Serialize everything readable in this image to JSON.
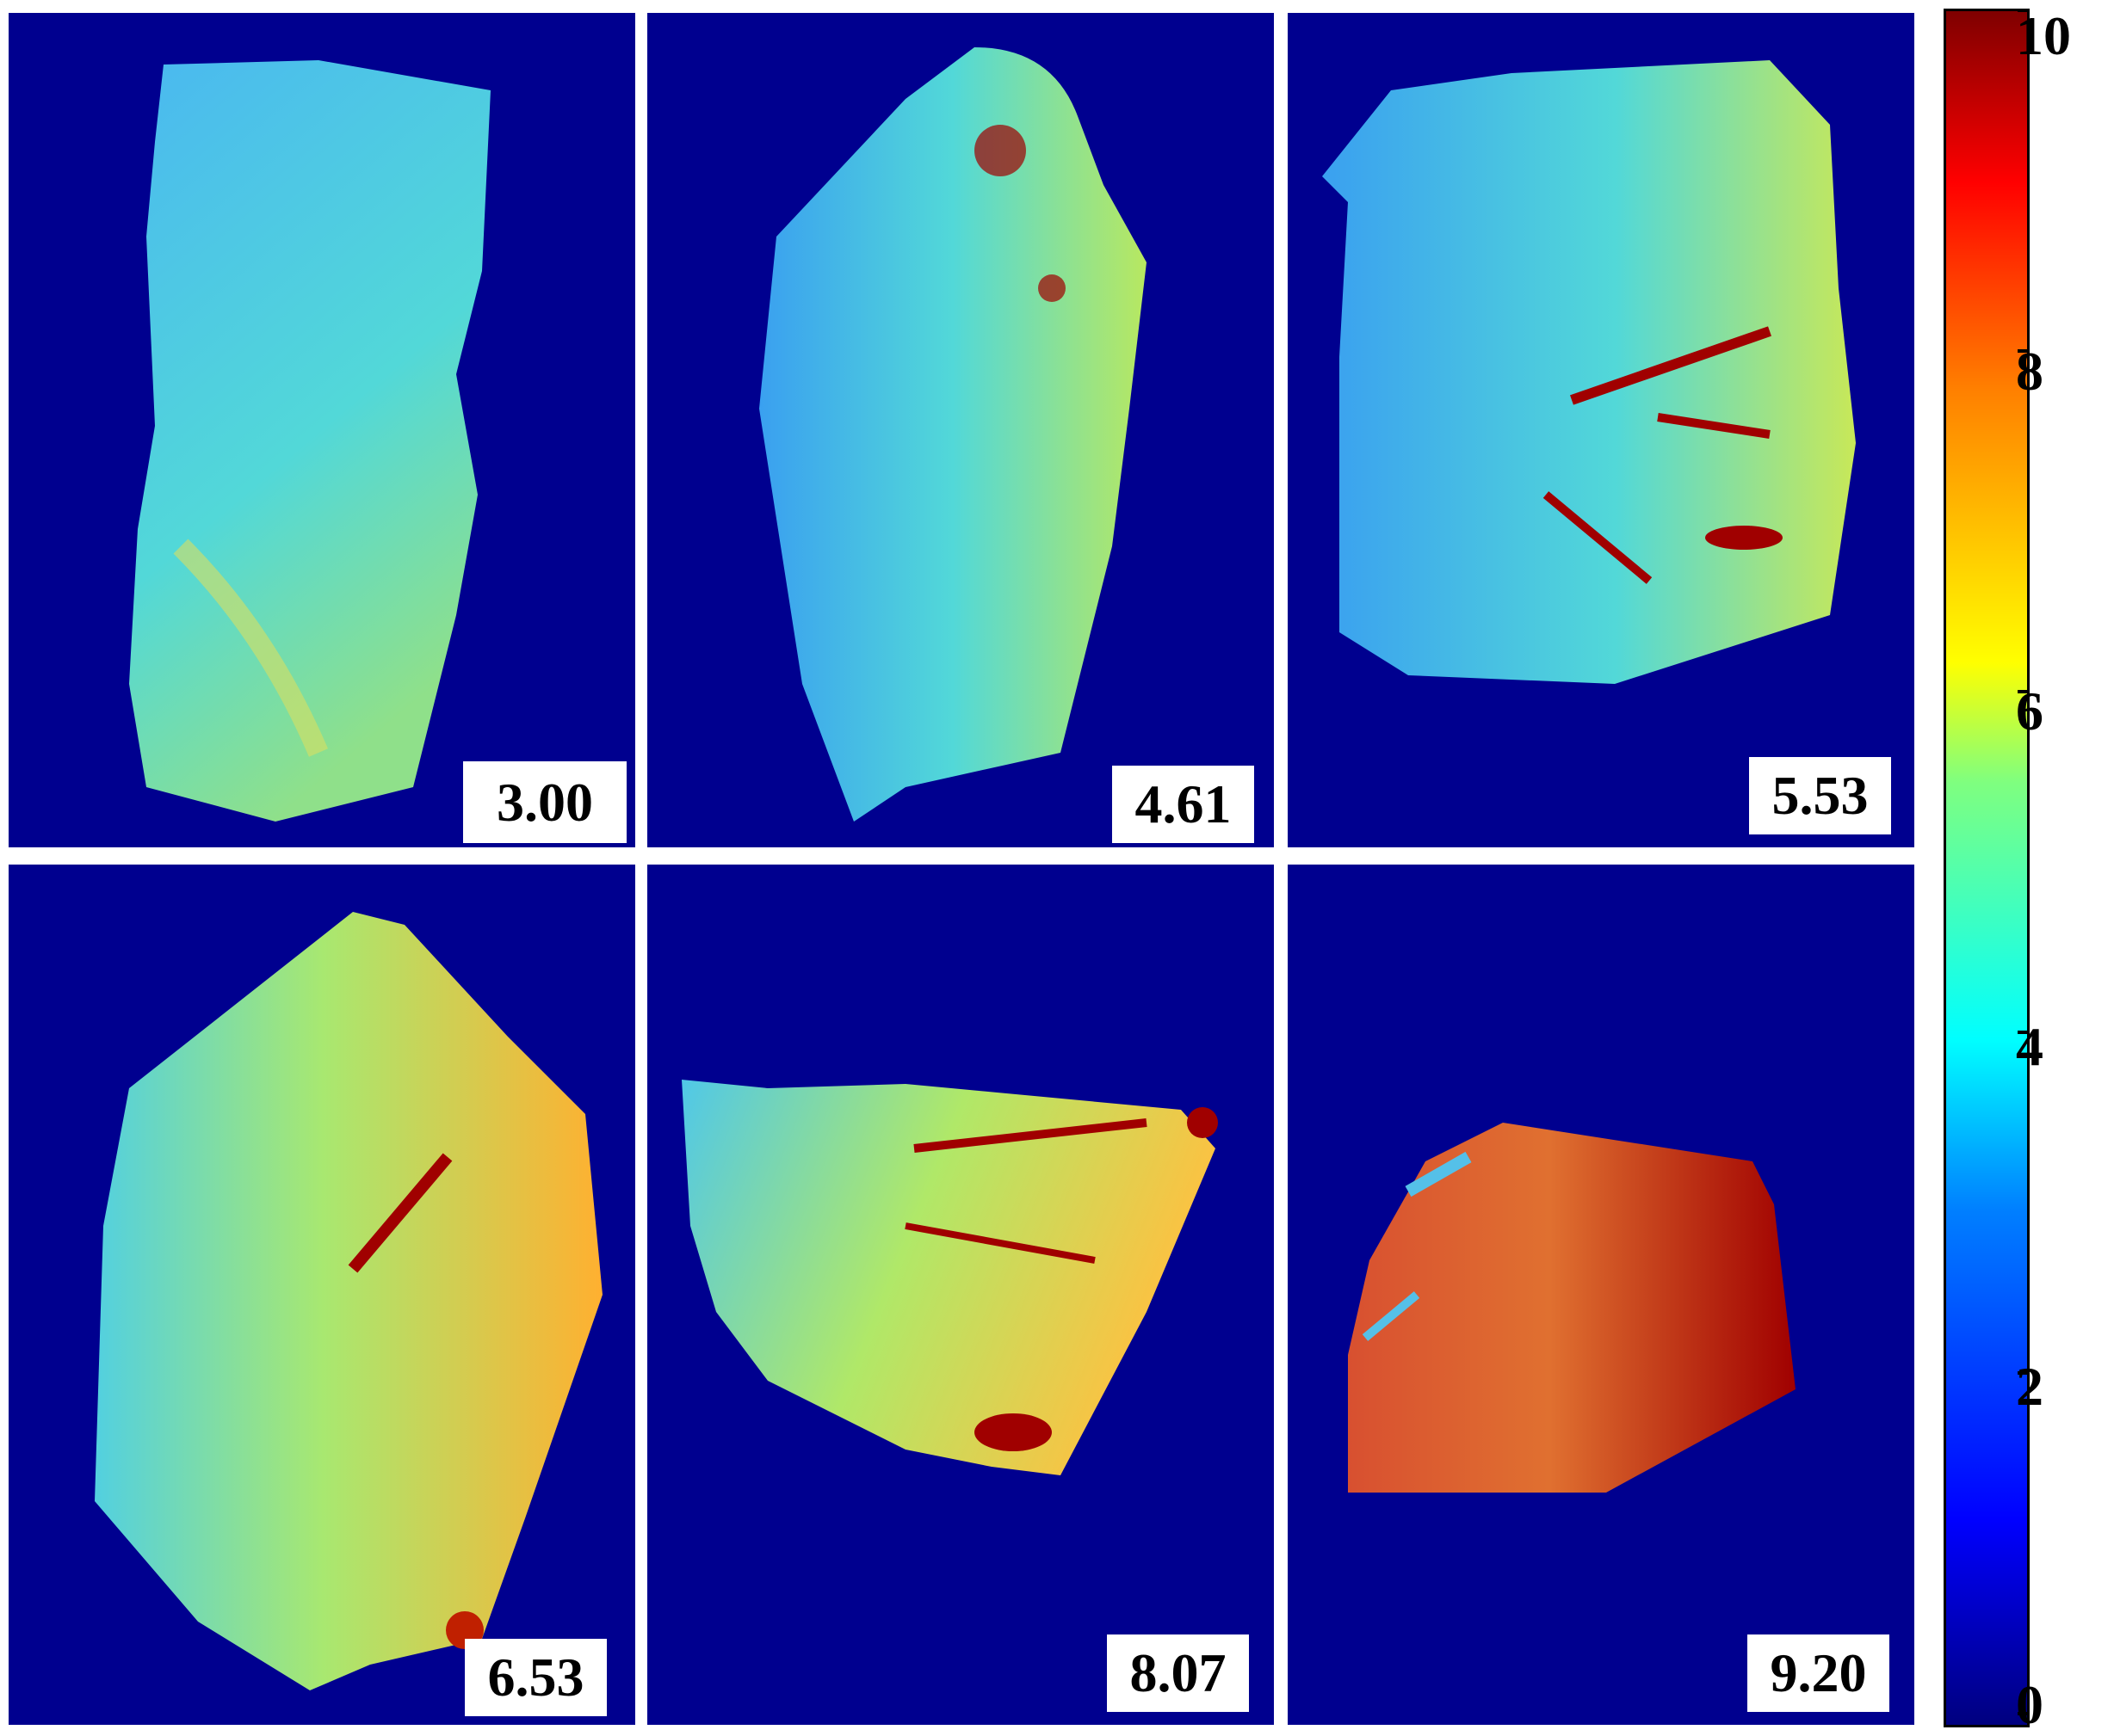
{
  "panels": [
    {
      "id": "p1",
      "label": "3.00"
    },
    {
      "id": "p2",
      "label": "4.61"
    },
    {
      "id": "p3",
      "label": "5.53"
    },
    {
      "id": "p4",
      "label": "6.53"
    },
    {
      "id": "p5",
      "label": "8.07"
    },
    {
      "id": "p6",
      "label": "9.20"
    }
  ],
  "colorbar": {
    "min": 0,
    "max": 10,
    "ticks": [
      "0",
      "2",
      "4",
      "6",
      "8",
      "10"
    ],
    "colormap": "jet"
  },
  "colors": {
    "background": "#00008f",
    "low": "#4aa3ff",
    "mid": "#4fe0c8",
    "high": "#ffd84a",
    "peak": "#a00000"
  }
}
